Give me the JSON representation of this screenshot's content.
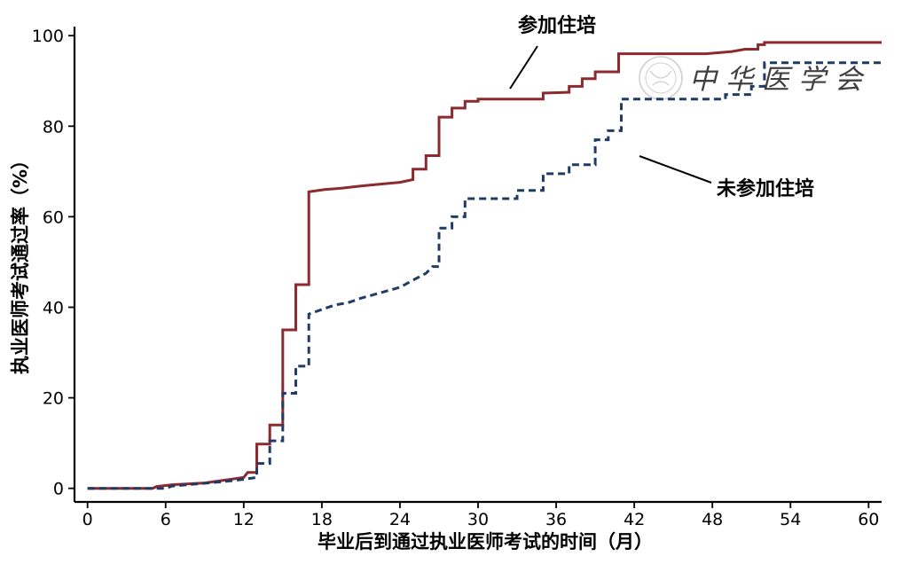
{
  "chart_data": {
    "type": "line",
    "xlabel": "毕业后到通过执业医师考试的时间（月）",
    "ylabel": "执业医师考试通过率（%）",
    "xlim": [
      -1,
      61
    ],
    "ylim": [
      -3,
      102
    ],
    "x_ticks": [
      0,
      6,
      12,
      18,
      24,
      30,
      36,
      42,
      48,
      54,
      60
    ],
    "y_ticks": [
      0,
      20,
      40,
      60,
      80,
      100
    ],
    "step": true,
    "grid": false,
    "series": [
      {
        "name": "参加住培",
        "color": "#8b2a2f",
        "dash": "solid",
        "points": [
          [
            0,
            0
          ],
          [
            5,
            0
          ],
          [
            5.3,
            0.4
          ],
          [
            6.5,
            0.8
          ],
          [
            9,
            1.2
          ],
          [
            10.5,
            1.8
          ],
          [
            12,
            2.4
          ],
          [
            12.3,
            3.5
          ],
          [
            13,
            3.5
          ],
          [
            13,
            9.8
          ],
          [
            14,
            9.8
          ],
          [
            14,
            14
          ],
          [
            15,
            14
          ],
          [
            15,
            35
          ],
          [
            16,
            35
          ],
          [
            16,
            45
          ],
          [
            17,
            45
          ],
          [
            17,
            65.5
          ],
          [
            18.2,
            66
          ],
          [
            19.5,
            66.3
          ],
          [
            21,
            66.8
          ],
          [
            22.5,
            67.2
          ],
          [
            24,
            67.6
          ],
          [
            25,
            68.2
          ],
          [
            25,
            70.5
          ],
          [
            26,
            70.5
          ],
          [
            26,
            73.5
          ],
          [
            27,
            73.5
          ],
          [
            27,
            82
          ],
          [
            28,
            82
          ],
          [
            28,
            84
          ],
          [
            29,
            84
          ],
          [
            29,
            85.5
          ],
          [
            30,
            85.5
          ],
          [
            30,
            86
          ],
          [
            35,
            86
          ],
          [
            35,
            87.3
          ],
          [
            37,
            87.5
          ],
          [
            37,
            88.8
          ],
          [
            38,
            88.8
          ],
          [
            38,
            90.5
          ],
          [
            39,
            90.5
          ],
          [
            39,
            92
          ],
          [
            40.8,
            92
          ],
          [
            40.8,
            96
          ],
          [
            47.5,
            96
          ],
          [
            49.5,
            96.5
          ],
          [
            50.5,
            97
          ],
          [
            51.5,
            97
          ],
          [
            51.5,
            98
          ],
          [
            52,
            98
          ],
          [
            52,
            98.5
          ],
          [
            61,
            98.5
          ]
        ]
      },
      {
        "name": "未参加住培",
        "color": "#1f3b66",
        "dash": "dashed",
        "points": [
          [
            0,
            0
          ],
          [
            6,
            0
          ],
          [
            6.5,
            0.5
          ],
          [
            8.5,
            1
          ],
          [
            10.5,
            1.5
          ],
          [
            12,
            2
          ],
          [
            13,
            2.4
          ],
          [
            13,
            5.5
          ],
          [
            14,
            5.5
          ],
          [
            14,
            10.5
          ],
          [
            15,
            10.5
          ],
          [
            15,
            21
          ],
          [
            16,
            21
          ],
          [
            16,
            27
          ],
          [
            17,
            27
          ],
          [
            17,
            38.5
          ],
          [
            18,
            39.5
          ],
          [
            19,
            40.5
          ],
          [
            20,
            41
          ],
          [
            21,
            42
          ],
          [
            22,
            42.8
          ],
          [
            23,
            43.6
          ],
          [
            24,
            44.4
          ],
          [
            25,
            46
          ],
          [
            26,
            47.5
          ],
          [
            26.5,
            49
          ],
          [
            27,
            49
          ],
          [
            27,
            57.5
          ],
          [
            28,
            57.5
          ],
          [
            28,
            60
          ],
          [
            29,
            60
          ],
          [
            29,
            64
          ],
          [
            33,
            64
          ],
          [
            33,
            65.8
          ],
          [
            35,
            65.8
          ],
          [
            35,
            69.5
          ],
          [
            37,
            69.5
          ],
          [
            37,
            71.5
          ],
          [
            39,
            71.5
          ],
          [
            39,
            77
          ],
          [
            40,
            77
          ],
          [
            40,
            79
          ],
          [
            41,
            79
          ],
          [
            41,
            86
          ],
          [
            49,
            86
          ],
          [
            49,
            87
          ],
          [
            51,
            87
          ],
          [
            51,
            88.8
          ],
          [
            52,
            88.8
          ],
          [
            52,
            94
          ],
          [
            61,
            94
          ]
        ]
      }
    ],
    "annotations": [
      {
        "text": "参加住培",
        "target": [
          31.5,
          86
        ]
      },
      {
        "text": "未参加住培",
        "target": [
          41.5,
          73.5
        ]
      }
    ]
  },
  "watermark": "中华医学会"
}
